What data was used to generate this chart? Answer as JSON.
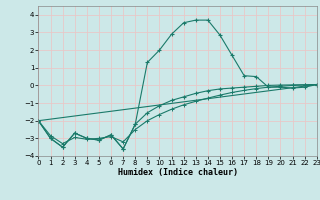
{
  "title": "",
  "xlabel": "Humidex (Indice chaleur)",
  "bg_color": "#cce8e8",
  "grid_color": "#e8c8c8",
  "line_color": "#1a7a6a",
  "xlim": [
    0,
    23
  ],
  "ylim": [
    -4,
    4.5
  ],
  "xticks": [
    0,
    1,
    2,
    3,
    4,
    5,
    6,
    7,
    8,
    9,
    10,
    11,
    12,
    13,
    14,
    15,
    16,
    17,
    18,
    19,
    20,
    21,
    22,
    23
  ],
  "yticks": [
    -4,
    -3,
    -2,
    -1,
    0,
    1,
    2,
    3,
    4
  ],
  "line1_x": [
    0,
    1,
    2,
    3,
    4,
    5,
    6,
    7,
    8,
    9,
    10,
    11,
    12,
    13,
    14,
    15,
    16,
    17,
    18,
    19,
    20,
    21,
    22,
    23
  ],
  "line1_y": [
    -2.0,
    -3.0,
    -3.5,
    -2.7,
    -3.0,
    -3.1,
    -2.8,
    -3.6,
    -2.2,
    1.3,
    2.0,
    2.9,
    3.55,
    3.7,
    3.7,
    2.85,
    1.7,
    0.55,
    0.5,
    -0.1,
    -0.1,
    -0.15,
    -0.1,
    0.05
  ],
  "line2_x": [
    0,
    1,
    2,
    3,
    4,
    5,
    6,
    7,
    8,
    9,
    10,
    11,
    12,
    13,
    14,
    15,
    16,
    17,
    18,
    19,
    20,
    21,
    22,
    23
  ],
  "line2_y": [
    -2.0,
    -3.0,
    -3.5,
    -2.7,
    -3.0,
    -3.1,
    -2.8,
    -3.6,
    -2.2,
    -1.55,
    -1.15,
    -0.85,
    -0.65,
    -0.45,
    -0.3,
    -0.2,
    -0.15,
    -0.1,
    -0.05,
    0.0,
    0.02,
    0.03,
    0.04,
    0.05
  ],
  "line3_x": [
    0,
    1,
    2,
    3,
    4,
    5,
    6,
    7,
    8,
    9,
    10,
    11,
    12,
    13,
    14,
    15,
    16,
    17,
    18,
    19,
    20,
    21,
    22,
    23
  ],
  "line3_y": [
    -2.0,
    -2.85,
    -3.3,
    -2.95,
    -3.05,
    -3.0,
    -2.9,
    -3.2,
    -2.5,
    -2.0,
    -1.65,
    -1.35,
    -1.1,
    -0.9,
    -0.72,
    -0.55,
    -0.4,
    -0.28,
    -0.18,
    -0.1,
    -0.05,
    0.0,
    0.02,
    0.05
  ],
  "line4_x": [
    0,
    23
  ],
  "line4_y": [
    -2.0,
    0.05
  ]
}
